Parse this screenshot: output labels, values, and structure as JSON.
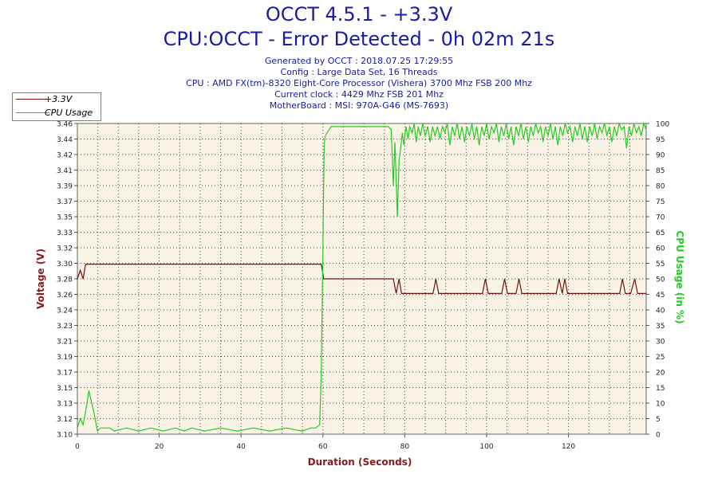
{
  "header": {
    "title_line1": "OCCT 4.5.1 - +3.3V",
    "title_line2": "CPU:OCCT - Error Detected - 0h 02m 21s",
    "info": [
      "Generated by OCCT : 2018.07.25 17:29:55",
      "Config : Large Data Set, 16 Threads",
      "CPU : AMD FX(tm)-8320 Eight-Core Processor (Vishera) 3700 Mhz FSB 200 Mhz",
      "Current clock : 4429 Mhz FSB 201 Mhz",
      "MotherBoard : MSI: 970A-G46 (MS-7693)"
    ]
  },
  "legend": [
    {
      "label": "+3.3V",
      "color": "#7a1010"
    },
    {
      "label": "CPU Usage",
      "color": "#22cc22"
    }
  ],
  "colors": {
    "voltage": "#7a1010",
    "cpu": "#22cc22",
    "plot_bg": "#fbf4e6",
    "title": "#1a1aa6",
    "left_axis_label": "#8b1a1a",
    "right_axis_label": "#22cc22",
    "x_axis_label": "#8b1a1a"
  },
  "chart_data": {
    "type": "line",
    "xlabel": "Duration (Seconds)",
    "ylabel": "Voltage (V)",
    "y2label": "CPU Usage (in %)",
    "xlim": [
      0,
      139
    ],
    "ylim": [
      3.1,
      3.46
    ],
    "y2lim": [
      0,
      100
    ],
    "x_ticks": [
      "0",
      "20",
      "40",
      "60",
      "80",
      "100",
      "120"
    ],
    "x_tick_values": [
      0,
      20,
      40,
      60,
      80,
      100,
      120
    ],
    "y_ticks": [
      "3.10",
      "3.12",
      "3.13",
      "3.15",
      "3.17",
      "3.19",
      "3.21",
      "3.23",
      "3.24",
      "3.26",
      "3.28",
      "3.30",
      "3.32",
      "3.33",
      "3.35",
      "3.37",
      "3.39",
      "3.41",
      "3.42",
      "3.44",
      "3.46"
    ],
    "y2_ticks": [
      "0",
      "5",
      "10",
      "15",
      "20",
      "25",
      "30",
      "35",
      "40",
      "45",
      "50",
      "55",
      "60",
      "65",
      "70",
      "75",
      "80",
      "85",
      "90",
      "95",
      "100"
    ],
    "grid": true,
    "series": [
      {
        "name": "+3.3V",
        "x": [
          0,
          0.7,
          1.4,
          2,
          59.6,
          60.2,
          76.5,
          77.2,
          77.9,
          78.6,
          79.2,
          80,
          86.9,
          87.6,
          88.3,
          99,
          99.7,
          100.4,
          102,
          103.7,
          104.4,
          105.1,
          106,
          107.2,
          107.9,
          108.6,
          117,
          117.7,
          118.5,
          119.1,
          119.8,
          120.4,
          132.5,
          133.2,
          133.9,
          135.2,
          136.2,
          136.9,
          137.6,
          139
        ],
        "values": [
          3.28,
          3.29,
          3.28,
          3.297,
          3.297,
          3.28,
          3.28,
          3.28,
          3.263,
          3.28,
          3.263,
          3.263,
          3.263,
          3.28,
          3.263,
          3.263,
          3.28,
          3.263,
          3.263,
          3.263,
          3.28,
          3.263,
          3.263,
          3.263,
          3.28,
          3.263,
          3.263,
          3.28,
          3.263,
          3.28,
          3.263,
          3.263,
          3.263,
          3.28,
          3.263,
          3.263,
          3.28,
          3.263,
          3.263,
          3.263
        ]
      },
      {
        "name": "CPU Usage",
        "x": [
          0,
          0.7,
          1.4,
          2.1,
          2.8,
          3.5,
          4.2,
          4.9,
          5.6,
          8,
          9,
          12,
          15,
          18,
          21,
          24,
          26,
          28,
          31,
          35,
          39,
          43,
          47,
          51,
          55,
          57,
          58.2,
          59.2,
          59.6,
          60,
          60.3,
          60.6,
          61,
          62,
          63,
          66,
          70,
          74,
          76,
          76.7,
          77.2,
          77.6,
          78.2,
          78.6,
          79,
          79.4,
          79.8,
          80.3,
          80.8,
          81.2,
          81.8,
          82.3,
          82.8,
          83.3,
          83.8,
          84.4,
          85,
          85.6,
          86.2,
          86.8,
          87.4,
          88,
          88.6,
          89.2,
          89.8,
          90.4,
          91,
          91.6,
          92.2,
          92.8,
          93.4,
          94,
          94.6,
          95.2,
          95.8,
          96.4,
          97,
          97.6,
          98.2,
          98.8,
          99.4,
          100,
          100.6,
          101.2,
          101.8,
          102.4,
          103,
          103.6,
          104.2,
          104.8,
          105.4,
          106,
          106.6,
          107.2,
          107.8,
          108.4,
          109,
          109.6,
          110.2,
          110.8,
          111.4,
          112,
          112.6,
          113.2,
          113.8,
          114.4,
          115,
          115.6,
          116.2,
          116.8,
          117.4,
          118,
          118.6,
          119.2,
          119.8,
          120.4,
          121,
          121.6,
          122.2,
          122.8,
          123.4,
          124,
          124.6,
          125.2,
          125.8,
          126.4,
          127,
          127.6,
          128.2,
          128.8,
          129.4,
          130,
          130.6,
          131.2,
          131.8,
          132.4,
          133,
          133.6,
          134.2,
          134.8,
          135.4,
          136,
          136.6,
          137.2,
          137.8,
          138.4,
          139
        ],
        "values": [
          2,
          5,
          3,
          8,
          14,
          10,
          6,
          1,
          2,
          2,
          1,
          2,
          1,
          2,
          1,
          2,
          1,
          2,
          1,
          2,
          1,
          2,
          1,
          2,
          1,
          2,
          2,
          3,
          20,
          60,
          93,
          96,
          97,
          99,
          99,
          99,
          99,
          99,
          99,
          98,
          80,
          94,
          70,
          88,
          92,
          97,
          93,
          99,
          95,
          99,
          97,
          100,
          94,
          99,
          96,
          100,
          96,
          99,
          94,
          99,
          96,
          99,
          95,
          99,
          97,
          100,
          93,
          99,
          96,
          100,
          95,
          99,
          94,
          99,
          96,
          100,
          95,
          99,
          93,
          99,
          96,
          100,
          95,
          99,
          97,
          100,
          94,
          99,
          96,
          100,
          95,
          99,
          93,
          99,
          96,
          100,
          95,
          99,
          94,
          99,
          96,
          100,
          97,
          99,
          94,
          99,
          96,
          100,
          95,
          99,
          93,
          99,
          96,
          100,
          97,
          99,
          94,
          99,
          96,
          100,
          95,
          99,
          94,
          99,
          96,
          100,
          95,
          99,
          97,
          100,
          96,
          99,
          94,
          99,
          96,
          100,
          98,
          99,
          92,
          99,
          96,
          100,
          97,
          99,
          96,
          100,
          98
        ]
      }
    ]
  }
}
